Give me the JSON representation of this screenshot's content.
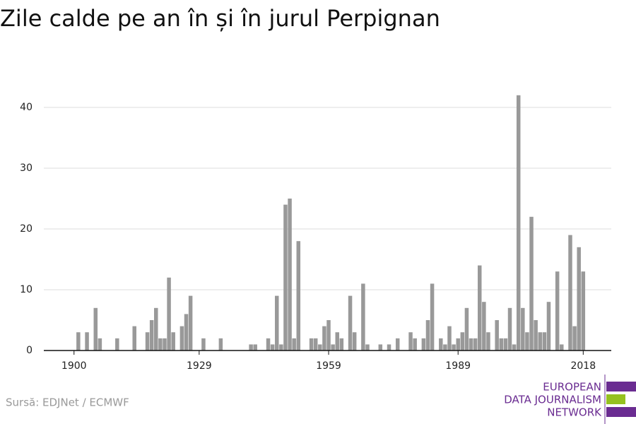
{
  "chart_data": {
    "type": "bar",
    "title": "Zile calde pe an în și în jurul Perpignan",
    "x": [
      1901,
      1903,
      1905,
      1906,
      1910,
      1914,
      1917,
      1918,
      1919,
      1920,
      1921,
      1922,
      1923,
      1925,
      1926,
      1927,
      1930,
      1934,
      1941,
      1942,
      1945,
      1946,
      1947,
      1948,
      1949,
      1950,
      1951,
      1952,
      1955,
      1956,
      1957,
      1958,
      1959,
      1960,
      1961,
      1962,
      1964,
      1965,
      1967,
      1968,
      1971,
      1973,
      1975,
      1978,
      1979,
      1981,
      1982,
      1983,
      1985,
      1986,
      1987,
      1988,
      1989,
      1990,
      1991,
      1992,
      1993,
      1994,
      1995,
      1996,
      1998,
      1999,
      2000,
      2001,
      2002,
      2003,
      2004,
      2005,
      2006,
      2007,
      2008,
      2009,
      2010,
      2012,
      2013,
      2015,
      2016,
      2017,
      2018
    ],
    "values": [
      3,
      3,
      7,
      2,
      2,
      4,
      3,
      5,
      7,
      2,
      2,
      12,
      3,
      4,
      6,
      9,
      2,
      2,
      1,
      1,
      2,
      1,
      9,
      1,
      24,
      25,
      2,
      18,
      2,
      2,
      1,
      4,
      5,
      1,
      3,
      2,
      9,
      3,
      11,
      1,
      1,
      1,
      2,
      3,
      2,
      2,
      5,
      11,
      2,
      1,
      4,
      1,
      2,
      3,
      7,
      2,
      2,
      14,
      8,
      3,
      5,
      2,
      2,
      7,
      1,
      42,
      7,
      3,
      22,
      5,
      3,
      3,
      8,
      13,
      1,
      19,
      4,
      17,
      13
    ],
    "color": "#999999",
    "xlim": [
      1893,
      2024.5
    ],
    "xticks": [
      1900,
      1929,
      1959,
      1989,
      2018
    ],
    "ylim": [
      0,
      45
    ],
    "yticks": [
      0,
      10,
      20,
      30,
      40
    ],
    "grid": true,
    "source": "Sursă: EDJNet / ECMWF"
  },
  "logo": {
    "lines": [
      "EUROPEAN",
      "DATA JOURNALISM",
      "NETWORK"
    ]
  }
}
